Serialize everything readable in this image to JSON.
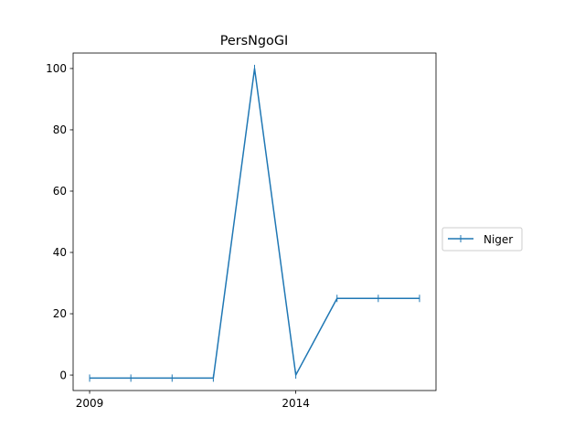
{
  "chart_data": {
    "type": "line",
    "title": "PersNgoGI",
    "xlabel": "",
    "ylabel": "",
    "x": [
      2009,
      2010,
      2011,
      2012,
      2013,
      2014,
      2015,
      2016,
      2017
    ],
    "series": [
      {
        "name": "Niger",
        "values": [
          -1,
          -1,
          -1,
          -1,
          100,
          0,
          25,
          25,
          25
        ],
        "color": "#1f77b4",
        "marker": "|"
      }
    ],
    "xlim": [
      2008.6,
      2017.4
    ],
    "ylim": [
      -5.05,
      105.05
    ],
    "xticks": [
      2009,
      2014
    ],
    "yticks": [
      0,
      20,
      40,
      60,
      80,
      100
    ],
    "grid": false,
    "legend": "center-right-outside"
  }
}
